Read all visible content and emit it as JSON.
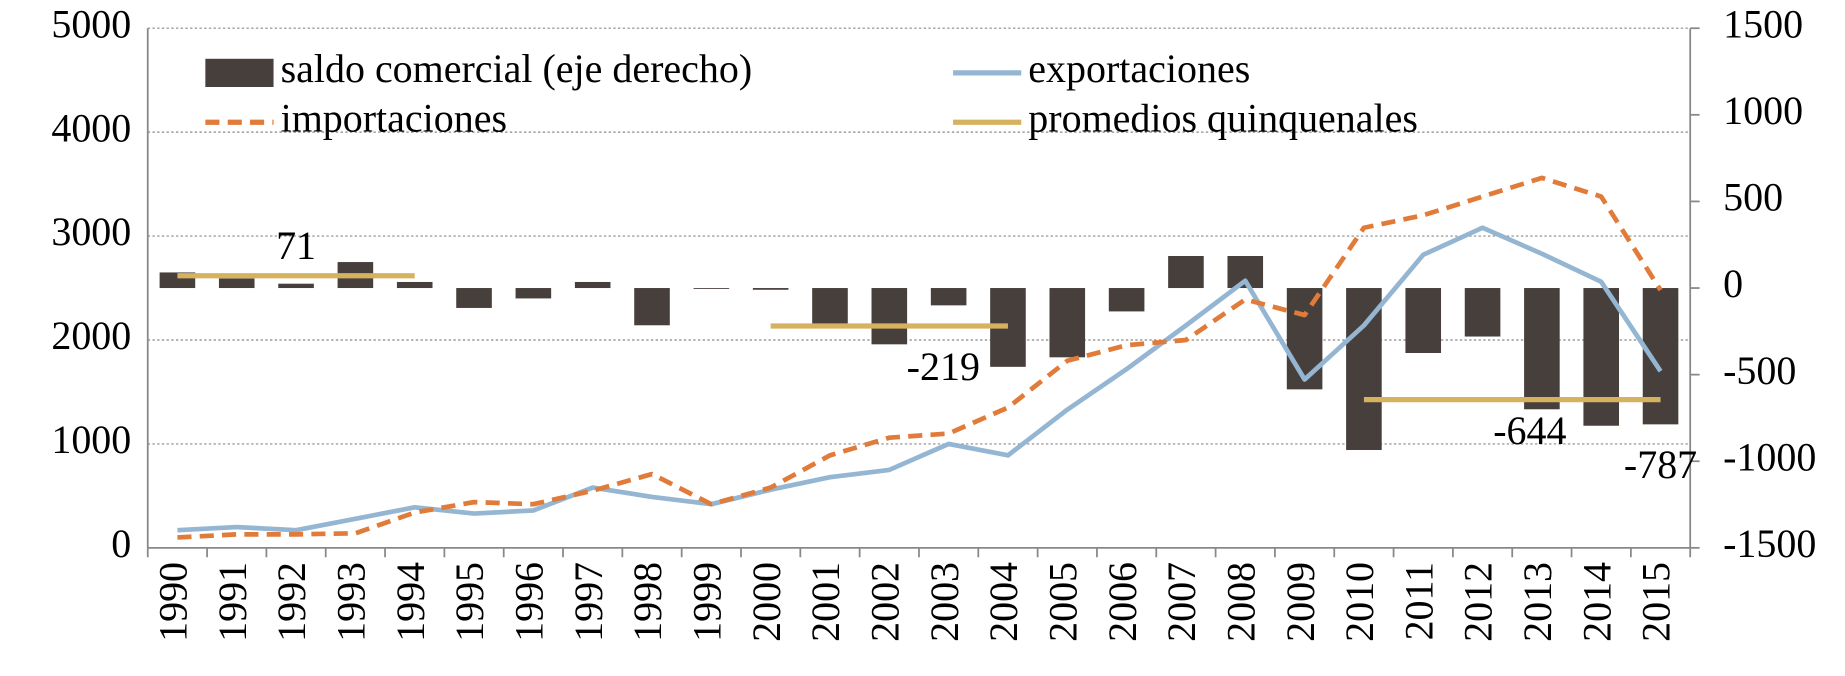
{
  "chart_data": {
    "type": "bar_line_combo",
    "categories": [
      "1990",
      "1991",
      "1992",
      "1993",
      "1994",
      "1995",
      "1996",
      "1997",
      "1998",
      "1999",
      "2000",
      "2001",
      "2002",
      "2003",
      "2004",
      "2005",
      "2006",
      "2007",
      "2008",
      "2009",
      "2010",
      "2011",
      "2012",
      "2013",
      "2014",
      "2015"
    ],
    "series": [
      {
        "name": "saldo comercial (eje derecho)",
        "type": "bar",
        "axis": "y2",
        "color": "#473f3b",
        "values": [
          90,
          55,
          25,
          150,
          35,
          -115,
          -60,
          35,
          -215,
          -5,
          -10,
          -210,
          -325,
          -100,
          -455,
          -400,
          -135,
          185,
          185,
          -585,
          -935,
          -375,
          -280,
          -700,
          -795,
          -787
        ],
        "value_labels": [
          null,
          null,
          null,
          null,
          null,
          null,
          null,
          null,
          null,
          null,
          null,
          null,
          null,
          null,
          null,
          null,
          null,
          null,
          null,
          null,
          null,
          null,
          null,
          null,
          null,
          "-787"
        ]
      },
      {
        "name": "exportaciones",
        "type": "line",
        "axis": "y",
        "color": "#94b6d2",
        "dash": false,
        "values": [
          170,
          200,
          170,
          280,
          390,
          330,
          360,
          580,
          490,
          420,
          560,
          680,
          750,
          1000,
          890,
          1330,
          1720,
          2140,
          2570,
          1620,
          2140,
          2820,
          3080,
          2830,
          2560,
          1700
        ]
      },
      {
        "name": "importaciones",
        "type": "line",
        "axis": "y",
        "color": "#e07b39",
        "dash": true,
        "values": [
          100,
          130,
          130,
          140,
          340,
          440,
          420,
          550,
          710,
          420,
          580,
          890,
          1060,
          1100,
          1350,
          1800,
          1950,
          2000,
          2390,
          2240,
          3080,
          3200,
          3380,
          3560,
          3380,
          2480
        ]
      }
    ],
    "averages": {
      "name": "promedios quinquenales",
      "color": "#d6b25e",
      "axis": "y2",
      "segments": [
        {
          "start": "1990",
          "end": "1994",
          "value": 71
        },
        {
          "start": "2000",
          "end": "2004",
          "value": -219
        },
        {
          "start": "2010",
          "end": "2015",
          "value": -644
        }
      ]
    },
    "ylim": [
      0,
      5000
    ],
    "yticks": [
      0,
      1000,
      2000,
      3000,
      4000,
      5000
    ],
    "y2lim": [
      -1500,
      1500
    ],
    "y2ticks": [
      -1500,
      -1000,
      -500,
      0,
      500,
      1000,
      1500
    ],
    "grid": true
  }
}
